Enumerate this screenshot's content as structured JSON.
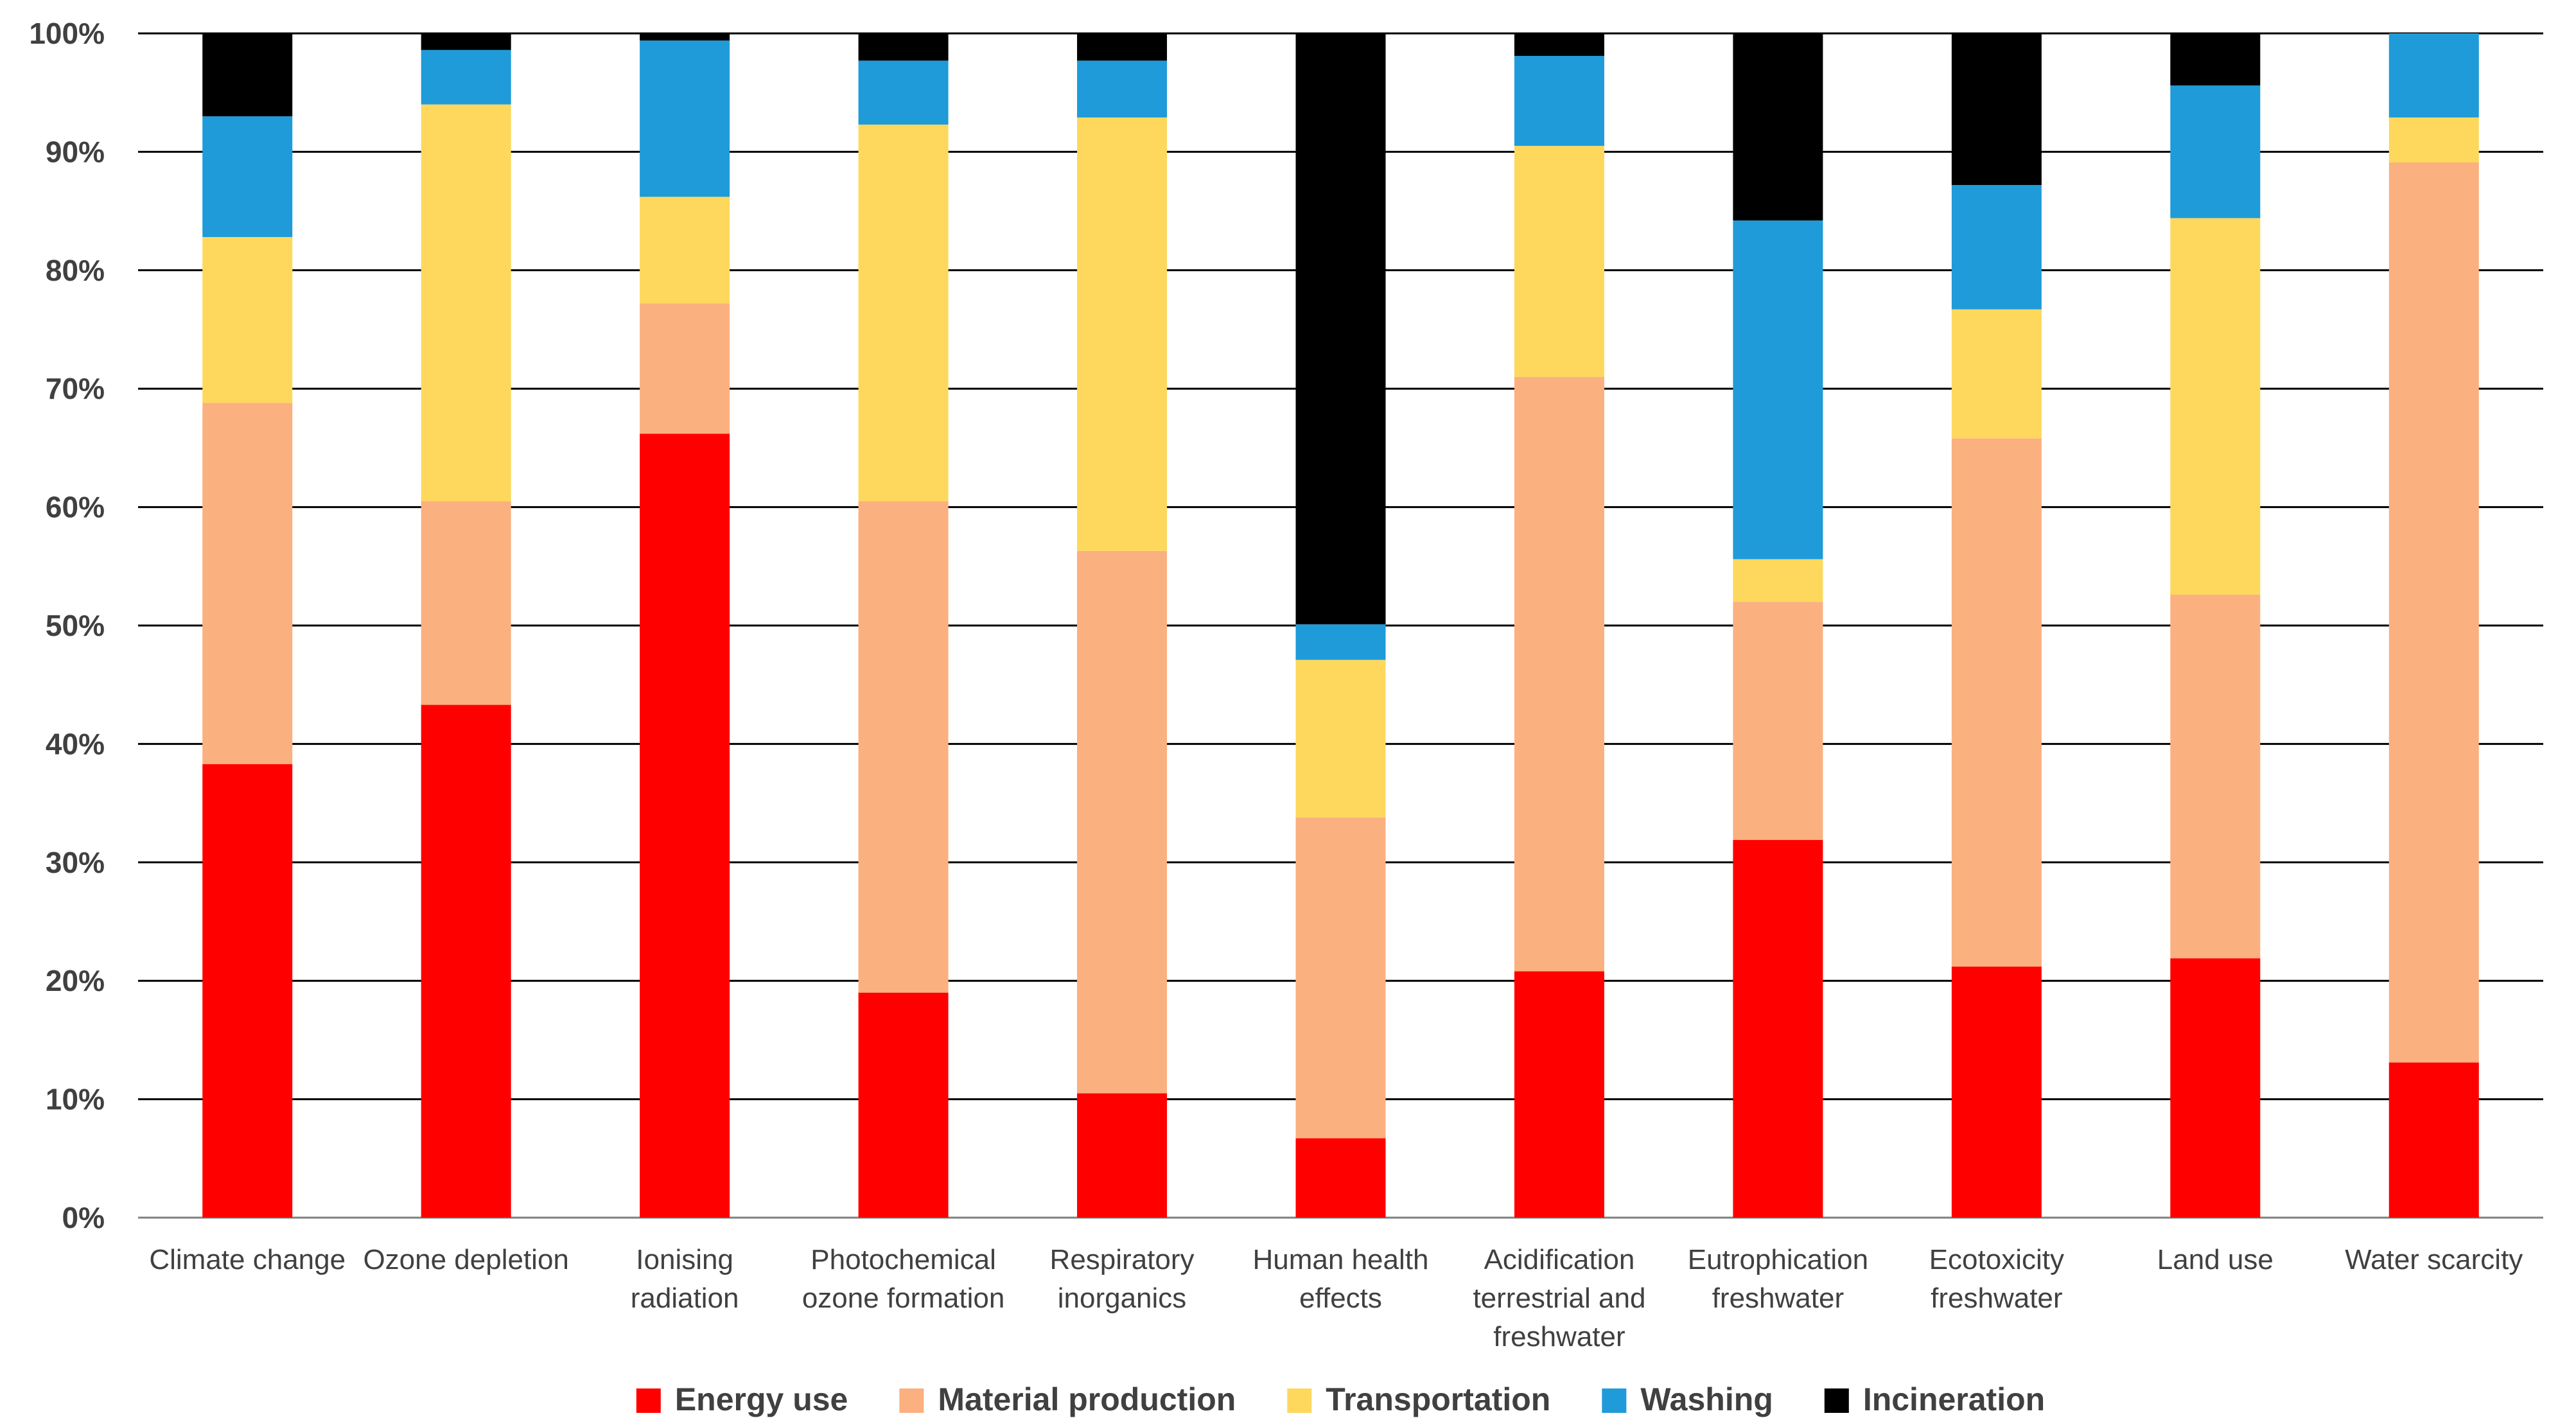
{
  "chart_data": {
    "type": "bar",
    "stacked": true,
    "normalized": true,
    "title": "",
    "xlabel": "",
    "ylabel": "",
    "ylim": [
      0,
      100
    ],
    "yticks": [
      "0%",
      "10%",
      "20%",
      "30%",
      "40%",
      "50%",
      "60%",
      "70%",
      "80%",
      "90%",
      "100%"
    ],
    "categories": [
      [
        "Climate change"
      ],
      [
        "Ozone depletion"
      ],
      [
        "Ionising",
        "radiation"
      ],
      [
        "Photochemical",
        "ozone formation"
      ],
      [
        "Respiratory",
        "inorganics"
      ],
      [
        "Human health",
        "effects"
      ],
      [
        "Acidification",
        "terrestrial and",
        "freshwater"
      ],
      [
        "Eutrophication",
        "freshwater"
      ],
      [
        "Ecotoxicity",
        "freshwater"
      ],
      [
        "Land use"
      ],
      [
        "Water scarcity"
      ]
    ],
    "series": [
      {
        "name": "Energy use",
        "color": "#ff0000",
        "values": [
          38.3,
          43.3,
          66.2,
          19.0,
          10.5,
          6.7,
          20.8,
          31.9,
          21.2,
          21.9,
          13.1
        ]
      },
      {
        "name": "Material production",
        "color": "#fbb07f",
        "values": [
          30.5,
          17.2,
          11.0,
          41.5,
          45.8,
          27.1,
          50.2,
          20.1,
          44.6,
          30.7,
          76.0
        ]
      },
      {
        "name": "Transportation",
        "color": "#fdd85d",
        "values": [
          14.0,
          33.5,
          9.0,
          31.8,
          36.6,
          13.3,
          19.5,
          3.6,
          10.9,
          31.8,
          3.8
        ]
      },
      {
        "name": "Washing",
        "color": "#1f9bd9",
        "values": [
          10.2,
          4.6,
          13.2,
          5.4,
          4.8,
          3.0,
          7.6,
          28.6,
          10.5,
          11.2,
          7.1
        ]
      },
      {
        "name": "Incineration",
        "color": "#000000",
        "values": [
          7.0,
          1.4,
          0.6,
          2.3,
          2.3,
          49.9,
          1.9,
          15.8,
          12.8,
          4.4,
          0.0
        ]
      }
    ],
    "legend_position": "bottom",
    "grid": true
  }
}
